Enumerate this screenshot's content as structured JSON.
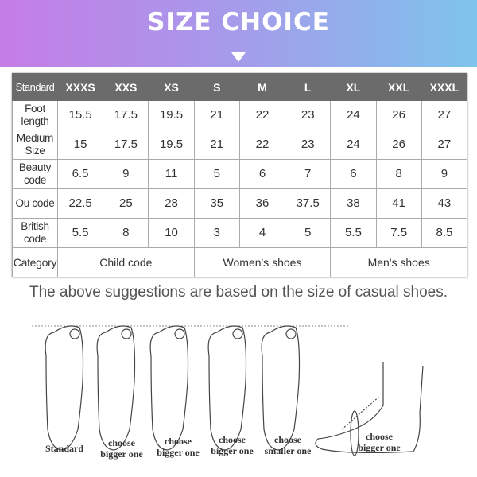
{
  "banner": {
    "title": "SIZE CHOICE",
    "gradient": [
      "#c57de6",
      "#7ec4ec"
    ]
  },
  "table": {
    "header": [
      "Standard",
      "XXXS",
      "XXS",
      "XS",
      "S",
      "M",
      "L",
      "XL",
      "XXL",
      "XXXL"
    ],
    "rows": [
      {
        "label": [
          "Foot",
          "length"
        ],
        "values": [
          "15.5",
          "17.5",
          "19.5",
          "21",
          "22",
          "23",
          "24",
          "26",
          "27"
        ]
      },
      {
        "label": [
          "Medium",
          "Size"
        ],
        "values": [
          "15",
          "17.5",
          "19.5",
          "21",
          "22",
          "23",
          "24",
          "26",
          "27"
        ]
      },
      {
        "label": [
          "Beauty",
          "code"
        ],
        "values": [
          "6.5",
          "9",
          "11",
          "5",
          "6",
          "7",
          "6",
          "8",
          "9"
        ]
      },
      {
        "label": [
          "Ou code",
          ""
        ],
        "values": [
          "22.5",
          "25",
          "28",
          "35",
          "36",
          "37.5",
          "38",
          "41",
          "43"
        ]
      },
      {
        "label": [
          "British",
          "code"
        ],
        "values": [
          "5.5",
          "8",
          "10",
          "3",
          "4",
          "5",
          "5.5",
          "7.5",
          "8.5"
        ]
      }
    ],
    "category": {
      "label": "Category",
      "groups": [
        "Child code",
        "Women's shoes",
        "Men's shoes"
      ]
    }
  },
  "note": "The above suggestions are based on the size of casual shoes.",
  "feet": [
    {
      "line1": "",
      "line2": "Standard"
    },
    {
      "line1": "choose",
      "line2": "bigger one"
    },
    {
      "line1": "choose",
      "line2": "bigger one"
    },
    {
      "line1": "choose",
      "line2": "bigger one"
    },
    {
      "line1": "choose",
      "line2": "smaller one"
    },
    {
      "line1": "choose",
      "line2": "bigger one"
    }
  ]
}
